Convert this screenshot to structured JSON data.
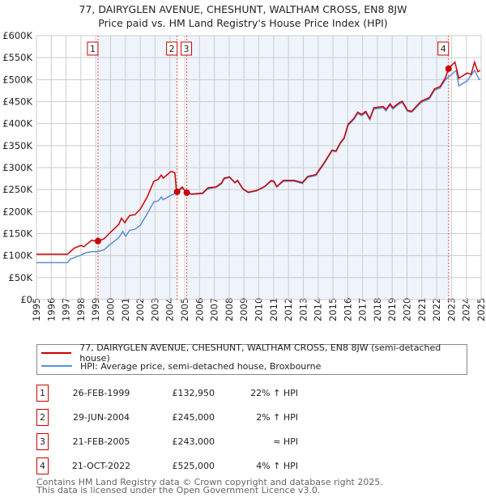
{
  "chart_data": {
    "type": "line",
    "title": "77, DAIRYGLEN AVENUE, CHESHUNT, WALTHAM CROSS, EN8 8JW",
    "subtitle": "Price paid vs. HM Land Registry's House Price Index (HPI)",
    "xlim": [
      1995,
      2025
    ],
    "ylim": [
      0,
      600000
    ],
    "x_ticks": [
      "1995",
      "1996",
      "1997",
      "1998",
      "1999",
      "2000",
      "2001",
      "2002",
      "2003",
      "2004",
      "2005",
      "2006",
      "2007",
      "2008",
      "2009",
      "2010",
      "2011",
      "2012",
      "2013",
      "2014",
      "2015",
      "2016",
      "2017",
      "2018",
      "2019",
      "2020",
      "2021",
      "2022",
      "2023",
      "2024",
      "2025"
    ],
    "y_ticks": [
      {
        "value": 0,
        "label": "£0"
      },
      {
        "value": 50000,
        "label": "£50K"
      },
      {
        "value": 100000,
        "label": "£100K"
      },
      {
        "value": 150000,
        "label": "£150K"
      },
      {
        "value": 200000,
        "label": "£200K"
      },
      {
        "value": 250000,
        "label": "£250K"
      },
      {
        "value": 300000,
        "label": "£300K"
      },
      {
        "value": 350000,
        "label": "£350K"
      },
      {
        "value": 400000,
        "label": "£400K"
      },
      {
        "value": 450000,
        "label": "£450K"
      },
      {
        "value": 500000,
        "label": "£500K"
      },
      {
        "value": 550000,
        "label": "£550K"
      },
      {
        "value": 600000,
        "label": "£600K"
      }
    ],
    "grid": true,
    "series": [
      {
        "name": "77, DAIRYGLEN AVENUE, CHESHUNT, WALTHAM CROSS, EN8 8JW (semi-detached house)",
        "color": "#cc0000",
        "x": [
          1995.0,
          1997.09,
          1997.55,
          1998.0,
          1998.19,
          1998.73,
          1999.1,
          1999.55,
          2000.0,
          2000.56,
          2000.74,
          2000.96,
          2001.28,
          2001.65,
          2002.01,
          2002.47,
          2002.92,
          2003.2,
          2003.42,
          2003.56,
          2004.02,
          2004.14,
          2004.34,
          2004.45,
          2004.84,
          2005.11,
          2005.47,
          2006.2,
          2006.57,
          2007.11,
          2007.48,
          2007.66,
          2008.02,
          2008.39,
          2008.57,
          2008.93,
          2009.29,
          2009.84,
          2010.39,
          2010.84,
          2011.02,
          2011.21,
          2011.66,
          2012.39,
          2012.94,
          2013.3,
          2013.85,
          2014.39,
          2014.94,
          2015.21,
          2015.49,
          2015.76,
          2016.03,
          2016.4,
          2016.67,
          2016.94,
          2017.22,
          2017.49,
          2017.76,
          2018.4,
          2018.58,
          2018.86,
          2019.04,
          2019.49,
          2019.68,
          2020.04,
          2020.31,
          2020.95,
          2021.5,
          2021.86,
          2022.23,
          2022.59,
          2022.8,
          2023.23,
          2023.5,
          2024.05,
          2024.32,
          2024.56,
          2024.78,
          2024.93
        ],
        "y": [
          103000,
          103000,
          117000,
          123000,
          120000,
          135000,
          132000,
          138000,
          153000,
          171000,
          185000,
          175000,
          191000,
          193000,
          206000,
          233000,
          269000,
          273000,
          283000,
          276000,
          290000,
          291000,
          288000,
          245000,
          256000,
          242000,
          240000,
          242000,
          254000,
          256000,
          265000,
          276000,
          279000,
          266000,
          271000,
          252000,
          244000,
          248000,
          257000,
          271000,
          269000,
          257000,
          271000,
          271000,
          266000,
          280000,
          284000,
          310000,
          340000,
          338000,
          356000,
          368000,
          399000,
          411000,
          426000,
          421000,
          428000,
          411000,
          436000,
          439000,
          432000,
          445000,
          436000,
          448000,
          451000,
          430000,
          428000,
          451000,
          459000,
          479000,
          484000,
          504000,
          525000,
          540000,
          503000,
          515000,
          512000,
          540000,
          518000,
          521000
        ]
      },
      {
        "name": "HPI: Average price, semi-detached house, Broxbourne",
        "color": "#5b8fd4",
        "x": [
          1995.0,
          1997.09,
          1997.28,
          1998.0,
          1998.37,
          1998.73,
          1999.1,
          1999.55,
          2000.0,
          2000.56,
          2000.83,
          2001.01,
          2001.28,
          2001.65,
          2002.01,
          2002.38,
          2002.92,
          2003.2,
          2003.42,
          2003.56,
          2004.02,
          2004.38,
          2004.84,
          2005.11,
          2005.47,
          2006.2,
          2006.57,
          2007.11,
          2007.48,
          2007.66,
          2008.02,
          2008.39,
          2008.57,
          2008.93,
          2009.29,
          2009.84,
          2010.39,
          2010.84,
          2011.02,
          2011.21,
          2011.66,
          2012.39,
          2012.94,
          2013.3,
          2013.85,
          2014.39,
          2014.94,
          2015.21,
          2015.49,
          2015.76,
          2016.03,
          2016.4,
          2016.67,
          2016.94,
          2017.22,
          2017.49,
          2017.76,
          2018.4,
          2018.58,
          2018.86,
          2019.04,
          2019.49,
          2019.68,
          2020.04,
          2020.31,
          2020.95,
          2021.5,
          2021.86,
          2022.23,
          2022.59,
          2022.77,
          2023.32,
          2023.5,
          2024.05,
          2024.56,
          2024.87,
          2024.95
        ],
        "y": [
          84000,
          84000,
          92000,
          101000,
          107000,
          109000,
          109000,
          113000,
          126000,
          141000,
          155000,
          144000,
          157000,
          160000,
          169000,
          190000,
          222000,
          224000,
          233000,
          227000,
          236000,
          242000,
          253000,
          244000,
          239000,
          241000,
          252000,
          255000,
          263000,
          274000,
          278000,
          265000,
          270000,
          251000,
          243000,
          247000,
          256000,
          269000,
          267000,
          256000,
          269000,
          269000,
          264000,
          278000,
          282000,
          308000,
          338000,
          336000,
          354000,
          366000,
          396000,
          409000,
          423000,
          418000,
          425000,
          409000,
          433000,
          436000,
          429000,
          442000,
          433000,
          445000,
          448000,
          428000,
          426000,
          448000,
          456000,
          476000,
          481000,
          500000,
          505000,
          521000,
          486000,
          497000,
          521000,
          500000,
          500000
        ]
      }
    ],
    "sales": [
      {
        "label": "1",
        "x": 1999.15,
        "y": 132950
      },
      {
        "label": "2",
        "x": 2004.49,
        "y": 245000
      },
      {
        "label": "3",
        "x": 2005.14,
        "y": 243000
      },
      {
        "label": "4",
        "x": 2022.8,
        "y": 525000
      }
    ],
    "shaded_ranges": [
      [
        1999.15,
        2004.49
      ],
      [
        2005.14,
        2022.8
      ]
    ],
    "legend_position": "bottom"
  },
  "title": {
    "line1": "77, DAIRYGLEN AVENUE, CHESHUNT, WALTHAM CROSS, EN8 8JW",
    "line2": "Price paid vs. HM Land Registry's House Price Index (HPI)"
  },
  "legend": {
    "red": "77, DAIRYGLEN AVENUE, CHESHUNT, WALTHAM CROSS, EN8 8JW (semi-detached house)",
    "blue": "HPI: Average price, semi-detached house, Broxbourne"
  },
  "transactions": [
    {
      "num": "1",
      "date": "26-FEB-1999",
      "price": "£132,950",
      "hpi": "22% ↑ HPI"
    },
    {
      "num": "2",
      "date": "29-JUN-2004",
      "price": "£245,000",
      "hpi": "2% ↑ HPI"
    },
    {
      "num": "3",
      "date": "21-FEB-2005",
      "price": "£243,000",
      "hpi": "≈ HPI"
    },
    {
      "num": "4",
      "date": "21-OCT-2022",
      "price": "£525,000",
      "hpi": "4% ↑ HPI"
    }
  ],
  "footer": {
    "line1": "Contains HM Land Registry data © Crown copyright and database right 2025.",
    "line2": "This data is licensed under the Open Government Licence v3.0."
  },
  "colors": {
    "red": "#cc0000",
    "blue": "#5b8fd4",
    "shade": "#eef3fc",
    "grid": "#cccccc"
  }
}
